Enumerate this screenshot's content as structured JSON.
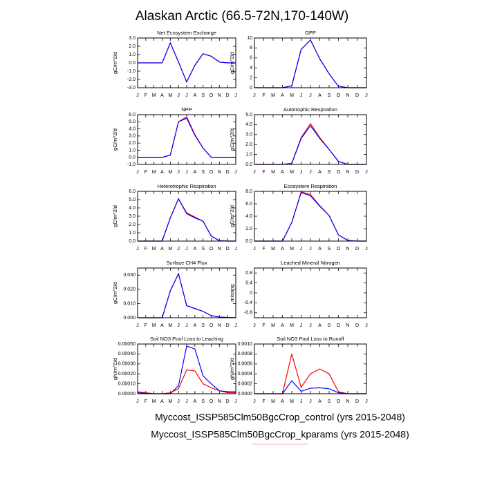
{
  "title": "Alaskan Arctic (66.5-72N,170-140W)",
  "chart_data": [
    {
      "type": "line",
      "title": "Net Ecosystem Exchange",
      "ylabel": "gC/m^2/d",
      "categories": [
        "J",
        "F",
        "M",
        "A",
        "M",
        "J",
        "J",
        "A",
        "S",
        "O",
        "N",
        "D",
        "J"
      ],
      "ylim": [
        -3,
        3
      ],
      "yticks": [
        {
          "value": -3,
          "label": "-3.0"
        },
        {
          "value": -2,
          "label": "-2.0"
        },
        {
          "value": -1,
          "label": "-1.0"
        },
        {
          "value": 0,
          "label": "0.0"
        },
        {
          "value": 1,
          "label": "1.0"
        },
        {
          "value": 2,
          "label": "2.0"
        },
        {
          "value": 3,
          "label": "3.0"
        }
      ],
      "series": [
        {
          "name": "Myccost_ISSP585Clm50BgcCrop_control (yrs 2015-2048)",
          "color": "#ff0000",
          "values": [
            0,
            0,
            0,
            0,
            2.4,
            0.1,
            -2.3,
            -0.3,
            1.1,
            0.8,
            0.1,
            0,
            0
          ]
        },
        {
          "name": "Myccost_ISSP585Clm50BgcCrop_kparams (yrs 2015-2048)",
          "color": "#0000ff",
          "values": [
            0,
            0,
            0,
            0,
            2.4,
            0.1,
            -2.3,
            -0.3,
            1.1,
            0.8,
            0.1,
            0,
            0
          ]
        }
      ]
    },
    {
      "type": "line",
      "title": "GPP",
      "ylabel": "gC/m^2/d",
      "categories": [
        "J",
        "F",
        "M",
        "A",
        "M",
        "J",
        "J",
        "A",
        "S",
        "O",
        "N",
        "D",
        "J"
      ],
      "ylim": [
        0,
        10
      ],
      "yticks": [
        0,
        2,
        4,
        6,
        8,
        10
      ],
      "series": [
        {
          "name": "Myccost_ISSP585Clm50BgcCrop_control (yrs 2015-2048)",
          "color": "#ff0000",
          "values": [
            0,
            0,
            0,
            0,
            0.4,
            7.7,
            9.6,
            5.8,
            2.8,
            0.3,
            0,
            0,
            0
          ]
        },
        {
          "name": "Myccost_ISSP585Clm50BgcCrop_kparams (yrs 2015-2048)",
          "color": "#0000ff",
          "values": [
            0,
            0,
            0,
            0,
            0.4,
            7.7,
            9.6,
            5.8,
            2.8,
            0.3,
            0,
            0,
            0
          ]
        }
      ]
    },
    {
      "type": "line",
      "title": "NPP",
      "ylabel": "gC/m^2/d",
      "categories": [
        "J",
        "F",
        "M",
        "A",
        "M",
        "J",
        "J",
        "A",
        "S",
        "O",
        "N",
        "D",
        "J"
      ],
      "ylim": [
        -1,
        6
      ],
      "yticks": [
        {
          "value": -1,
          "label": "-1.0"
        },
        {
          "value": 0,
          "label": "0.0"
        },
        {
          "value": 1,
          "label": "1.0"
        },
        {
          "value": 2,
          "label": "2.0"
        },
        {
          "value": 3,
          "label": "3.0"
        },
        {
          "value": 4,
          "label": "4.0"
        },
        {
          "value": 5,
          "label": "5.0"
        },
        {
          "value": 6,
          "label": "6.0"
        }
      ],
      "series": [
        {
          "name": "Myccost_ISSP585Clm50BgcCrop_control (yrs 2015-2048)",
          "color": "#ff0000",
          "values": [
            0,
            0,
            0,
            0,
            0.3,
            5.0,
            5.7,
            3.2,
            1.3,
            0,
            0,
            0,
            0
          ]
        },
        {
          "name": "Myccost_ISSP585Clm50BgcCrop_kparams (yrs 2015-2048)",
          "color": "#0000ff",
          "values": [
            0,
            0,
            0,
            0,
            0.3,
            5.0,
            5.5,
            3.1,
            1.3,
            0,
            0,
            0,
            0
          ]
        }
      ]
    },
    {
      "type": "line",
      "title": "Autotrophic Respiration",
      "ylabel": "gC/m^2/d",
      "categories": [
        "J",
        "F",
        "M",
        "A",
        "M",
        "J",
        "J",
        "A",
        "S",
        "O",
        "N",
        "D",
        "J"
      ],
      "ylim": [
        0,
        5
      ],
      "yticks": [
        {
          "value": 0,
          "label": "0.0"
        },
        {
          "value": 1,
          "label": "1.0"
        },
        {
          "value": 2,
          "label": "2.0"
        },
        {
          "value": 3,
          "label": "3.0"
        },
        {
          "value": 4,
          "label": "4.0"
        },
        {
          "value": 5,
          "label": "5.0"
        }
      ],
      "series": [
        {
          "name": "Myccost_ISSP585Clm50BgcCrop_control (yrs 2015-2048)",
          "color": "#ff0000",
          "values": [
            0,
            0,
            0,
            0,
            0.1,
            2.7,
            4.1,
            2.7,
            1.5,
            0.3,
            0,
            0,
            0
          ]
        },
        {
          "name": "Myccost_ISSP585Clm50BgcCrop_kparams (yrs 2015-2048)",
          "color": "#0000ff",
          "values": [
            0,
            0,
            0,
            0,
            0.1,
            2.6,
            3.9,
            2.6,
            1.5,
            0.3,
            0,
            0,
            0
          ]
        }
      ]
    },
    {
      "type": "line",
      "title": "Heterotrophic Respiration",
      "ylabel": "gC/m^2/d",
      "categories": [
        "J",
        "F",
        "M",
        "A",
        "M",
        "J",
        "J",
        "A",
        "S",
        "O",
        "N",
        "D",
        "J"
      ],
      "ylim": [
        0,
        6
      ],
      "yticks": [
        {
          "value": 0,
          "label": "0.0"
        },
        {
          "value": 1,
          "label": "1.0"
        },
        {
          "value": 2,
          "label": "2.0"
        },
        {
          "value": 3,
          "label": "3.0"
        },
        {
          "value": 4,
          "label": "4.0"
        },
        {
          "value": 5,
          "label": "5.0"
        },
        {
          "value": 6,
          "label": "6.0"
        }
      ],
      "series": [
        {
          "name": "Myccost_ISSP585Clm50BgcCrop_control (yrs 2015-2048)",
          "color": "#ff0000",
          "values": [
            0,
            0,
            0,
            0,
            2.8,
            5.1,
            3.4,
            2.9,
            2.4,
            0.6,
            0.05,
            0,
            0
          ]
        },
        {
          "name": "Myccost_ISSP585Clm50BgcCrop_kparams (yrs 2015-2048)",
          "color": "#0000ff",
          "values": [
            0,
            0,
            0,
            0,
            2.8,
            5.1,
            3.3,
            2.8,
            2.4,
            0.6,
            0.05,
            0,
            0
          ]
        }
      ]
    },
    {
      "type": "line",
      "title": "Ecosystem Respiration",
      "ylabel": "gC/m^2/d",
      "categories": [
        "J",
        "F",
        "M",
        "A",
        "M",
        "J",
        "J",
        "A",
        "S",
        "O",
        "N",
        "D",
        "J"
      ],
      "ylim": [
        0,
        8
      ],
      "yticks": [
        {
          "value": 0,
          "label": "0.0"
        },
        {
          "value": 2,
          "label": "2.0"
        },
        {
          "value": 4,
          "label": "4.0"
        },
        {
          "value": 6,
          "label": "6.0"
        },
        {
          "value": 8,
          "label": "8.0"
        }
      ],
      "series": [
        {
          "name": "Myccost_ISSP585Clm50BgcCrop_control (yrs 2015-2048)",
          "color": "#ff0000",
          "values": [
            0,
            0,
            0,
            0,
            3.0,
            7.9,
            7.5,
            5.7,
            4.1,
            1.0,
            0.1,
            0,
            0
          ]
        },
        {
          "name": "Myccost_ISSP585Clm50BgcCrop_kparams (yrs 2015-2048)",
          "color": "#0000ff",
          "values": [
            0,
            0,
            0,
            0,
            3.0,
            7.8,
            7.3,
            5.6,
            4.1,
            1.0,
            0.1,
            0,
            0
          ]
        }
      ]
    },
    {
      "type": "line",
      "title": "Surface CH4 Flux",
      "ylabel": "gC/m^2/d",
      "categories": [
        "J",
        "F",
        "M",
        "A",
        "M",
        "J",
        "J",
        "A",
        "S",
        "O",
        "N",
        "D",
        "J"
      ],
      "ylim": [
        0,
        0.035
      ],
      "yticks": [
        {
          "value": 0,
          "label": "0.000"
        },
        {
          "value": 0.01,
          "label": "0.010"
        },
        {
          "value": 0.02,
          "label": "0.020"
        },
        {
          "value": 0.03,
          "label": "0.030"
        }
      ],
      "series": [
        {
          "name": "Myccost_ISSP585Clm50BgcCrop_control (yrs 2015-2048)",
          "color": "#ff0000",
          "values": [
            0,
            0,
            0,
            0,
            0.019,
            0.031,
            0.0085,
            0.0065,
            0.0045,
            0.0015,
            0.0005,
            0.0002,
            0
          ]
        },
        {
          "name": "Myccost_ISSP585Clm50BgcCrop_kparams (yrs 2015-2048)",
          "color": "#0000ff",
          "values": [
            0,
            0,
            0,
            0,
            0.019,
            0.031,
            0.0085,
            0.0065,
            0.0045,
            0.0015,
            0.0005,
            0.0002,
            0
          ]
        }
      ]
    },
    {
      "type": "line",
      "title": "Leached Mineral Nitrogen",
      "ylabel": "missing",
      "categories": [
        "J",
        "F",
        "M",
        "A",
        "M",
        "J",
        "J",
        "A",
        "S",
        "O",
        "N",
        "D",
        "J"
      ],
      "ylim": [
        -1,
        1
      ],
      "yticks": [
        -0.8,
        -0.4,
        0,
        0.4,
        0.8
      ],
      "series": []
    },
    {
      "type": "line",
      "title": "Soil NO3 Pool Loss to Leaching",
      "ylabel": "gN/m^2/d",
      "categories": [
        "J",
        "F",
        "M",
        "A",
        "M",
        "J",
        "J",
        "A",
        "S",
        "O",
        "N",
        "D",
        "J"
      ],
      "ylim": [
        0,
        0.0005
      ],
      "yticks": [
        {
          "value": 0,
          "label": "0.00000"
        },
        {
          "value": 0.0001,
          "label": "0.00010"
        },
        {
          "value": 0.0002,
          "label": "0.00020"
        },
        {
          "value": 0.0003,
          "label": "0.00030"
        },
        {
          "value": 0.0004,
          "label": "0.00040"
        },
        {
          "value": 0.0005,
          "label": "0.00050"
        }
      ],
      "series": [
        {
          "name": "Myccost_ISSP585Clm50BgcCrop_control (yrs 2015-2048)",
          "color": "#ff0000",
          "values": [
            2e-05,
            1e-05,
            0,
            0,
            1e-05,
            5e-05,
            0.00024,
            0.00023,
            0.0001,
            6e-05,
            3e-05,
            1e-05,
            1e-05
          ]
        },
        {
          "name": "Myccost_ISSP585Clm50BgcCrop_kparams (yrs 2015-2048)",
          "color": "#0000ff",
          "values": [
            1e-05,
            5e-06,
            0,
            0,
            0,
            8e-05,
            0.00048,
            0.00045,
            0.00018,
            0.0001,
            3e-05,
            2e-05,
            2e-05
          ]
        }
      ]
    },
    {
      "type": "line",
      "title": "Soil NO3 Pool Loss to Runoff",
      "ylabel": "gN/m^2/d",
      "categories": [
        "J",
        "F",
        "M",
        "A",
        "M",
        "J",
        "J",
        "A",
        "S",
        "O",
        "N",
        "D",
        "J"
      ],
      "ylim": [
        0,
        0.001
      ],
      "yticks": [
        {
          "value": 0,
          "label": "0.0000"
        },
        {
          "value": 0.0002,
          "label": "0.0002"
        },
        {
          "value": 0.0004,
          "label": "0.0004"
        },
        {
          "value": 0.0006,
          "label": "0.0006"
        },
        {
          "value": 0.0008,
          "label": "0.0008"
        },
        {
          "value": 0.001,
          "label": "0.0010"
        }
      ],
      "series": [
        {
          "name": "Myccost_ISSP585Clm50BgcCrop_control (yrs 2015-2048)",
          "color": "#ff0000",
          "values": [
            0,
            0,
            0,
            0,
            0.0008,
            0.00013,
            0.0004,
            0.0005,
            0.0004,
            4e-05,
            0,
            0,
            0
          ]
        },
        {
          "name": "Myccost_ISSP585Clm50BgcCrop_kparams (yrs 2015-2048)",
          "color": "#0000ff",
          "values": [
            0,
            0,
            0,
            0,
            0.00026,
            5e-05,
            0.00011,
            0.00012,
            0.0001,
            2e-05,
            0,
            0,
            0
          ]
        }
      ]
    }
  ]
}
